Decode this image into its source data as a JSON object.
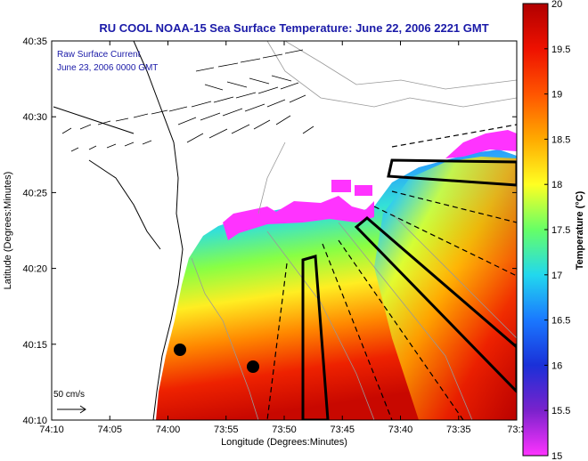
{
  "title": "RU COOL   NOAA-15  Sea Surface Temperature:  June 22, 2006 2221 GMT",
  "legend": {
    "line1": "Raw Surface Current",
    "line2": "June 23, 2006 0000 GMT"
  },
  "scale_label": "50 cm/s",
  "x_axis": {
    "label": "Longitude (Degrees:Minutes)",
    "ticks": [
      "74:10",
      "74:05",
      "74:00",
      "73:55",
      "73:50",
      "73:45",
      "73:40",
      "73:35",
      "73:3"
    ]
  },
  "y_axis": {
    "label": "Latitude (Degrees:Minutes)",
    "ticks": [
      "40:35",
      "40:30",
      "40:25",
      "40:20",
      "40:15",
      "40:10"
    ]
  },
  "colorbar": {
    "label": "Temperature (°C)",
    "ticks": [
      "20",
      "19.5",
      "19",
      "18.5",
      "18",
      "17.5",
      "17",
      "16.5",
      "16",
      "15.5",
      "15"
    ],
    "range": [
      15,
      20
    ],
    "colors": [
      "#ff33ff",
      "#7a22cc",
      "#1a30d8",
      "#1a78ff",
      "#22d8ee",
      "#66ff66",
      "#ffff22",
      "#ffaa00",
      "#ff5500",
      "#ee1100",
      "#b00000"
    ]
  },
  "colors": {
    "land": "#ffffff",
    "coast": "#000000",
    "bathymetry": "#999999",
    "title": "#1a1aa8"
  }
}
